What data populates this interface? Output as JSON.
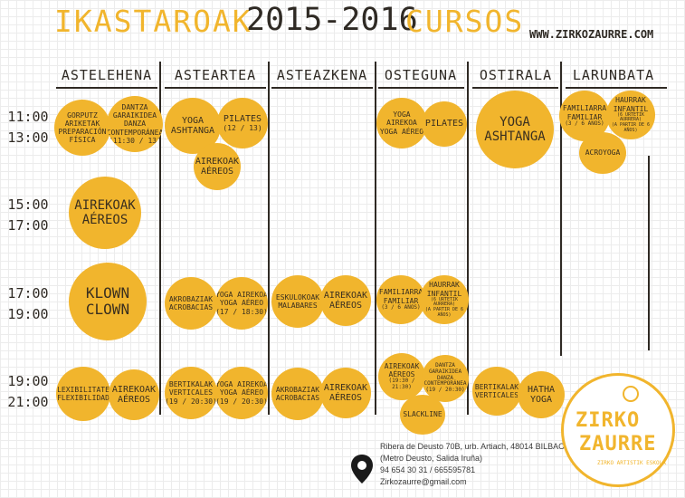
{
  "header": {
    "title": "IKASTAROAK",
    "years": "2015-2016",
    "cursos": "CURSOS",
    "website": "WWW.ZIRKOZAURRE.COM"
  },
  "days": [
    "ASTELEHENA",
    "ASTEARTEA",
    "ASTEAZKENA",
    "OSTEGUNA",
    "OSTIRALA",
    "LARUNBATA"
  ],
  "times": [
    [
      "11:00",
      "13:00"
    ],
    [
      "15:00",
      "17:00"
    ],
    [
      "17:00",
      "19:00"
    ],
    [
      "19:00",
      "21:00"
    ]
  ],
  "classes": {
    "mon_1a": [
      "GORPUTZ",
      "ARIKETAK",
      "PREPARACIÓN",
      "FÍSICA"
    ],
    "mon_1b": [
      "DANTZA",
      "GARAIKIDEA",
      "DANZA",
      "CONTEMPORÁNEA",
      "(11:30 / 13)"
    ],
    "mon_2": [
      "AIREKOAK",
      "AÉREOS"
    ],
    "mon_3": [
      "KLOWN",
      "CLOWN"
    ],
    "mon_4a": [
      "FLEXIBILITATEA",
      "FLEXIBILIDAD"
    ],
    "mon_4b": [
      "AIREKOAK",
      "AÉREOS"
    ],
    "tue_1a": [
      "YOGA",
      "ASHTANGA"
    ],
    "tue_1b": [
      "PILATES",
      "(12 / 13)"
    ],
    "tue_1c": [
      "AIREKOAK",
      "AÉREOS"
    ],
    "tue_3a": [
      "AKROBAZIAK",
      "ACROBACIAS"
    ],
    "tue_3b": [
      "YOGA AIREKOA",
      "YOGA AÉREO",
      "(17 / 18:30)"
    ],
    "tue_4a": [
      "BERTIKALAK",
      "VERTICALES",
      "(19 / 20:30)"
    ],
    "tue_4b": [
      "YOGA AIREKOA",
      "YOGA AÉREO",
      "(19 / 20:30)"
    ],
    "wed_3a": [
      "ESKULOKOAK",
      "MALABARES"
    ],
    "wed_3b": [
      "AIREKOAK",
      "AÉREOS"
    ],
    "wed_4a": [
      "AKROBAZIAK",
      "ACROBACIAS"
    ],
    "wed_4b": [
      "AIREKOAK",
      "AÉREOS"
    ],
    "thu_1a": [
      "YOGA AIREKOA",
      "YOGA AÉREO"
    ],
    "thu_1b": [
      "PILATES"
    ],
    "thu_3a": [
      "FAMILIARRA",
      "FAMILIAR",
      "(3 / 6 ANOS)"
    ],
    "thu_3b": [
      "HAURRAK",
      "INFANTIL",
      "(6 URTETIK AURRERA)",
      "(A PARTIR DE 6 AÑOS)"
    ],
    "thu_4a": [
      "AIREKOAK",
      "AÉREOS",
      "(19:30 / 21:30)"
    ],
    "thu_4b": [
      "DANTZA",
      "GARAIKIDEA",
      "DANZA",
      "CONTEMPORÁNEA",
      "(19 / 20:30)"
    ],
    "thu_4c": [
      "SLACKLINE"
    ],
    "fri_1": [
      "YOGA",
      "ASHTANGA"
    ],
    "fri_4a": [
      "BERTIKALAK",
      "VERTICALES"
    ],
    "fri_4b": [
      "HATHA",
      "YOGA"
    ],
    "sat_1a": [
      "FAMILIARRA",
      "FAMILIAR",
      "(3 / 6 ANOS)"
    ],
    "sat_1b": [
      "HAURRAK",
      "INFANTIL",
      "(6 URTETIK AURRERA)",
      "(A PARTIR DE 6 AÑOS)"
    ],
    "sat_1c": [
      "ACROYOGA"
    ]
  },
  "address": {
    "line1": "Ribera de Deusto 70B, urb. Artiach, 48014 BILBAO",
    "line2": "(Metro Deusto, Salida Iruña)",
    "line3": "94 654 30 31 / 665595781",
    "line4": "Zirkozaurre@gmail.com"
  },
  "logo": {
    "line1": "ZIRKO",
    "line2": "ZAURRE",
    "tagline": "ZIRKO ARTISTIK ESKOLA"
  },
  "colors": {
    "accent": "#f1b52d",
    "ink": "#2f2a24"
  },
  "icons": [
    "location-pin-icon",
    "unicycle-icon"
  ]
}
